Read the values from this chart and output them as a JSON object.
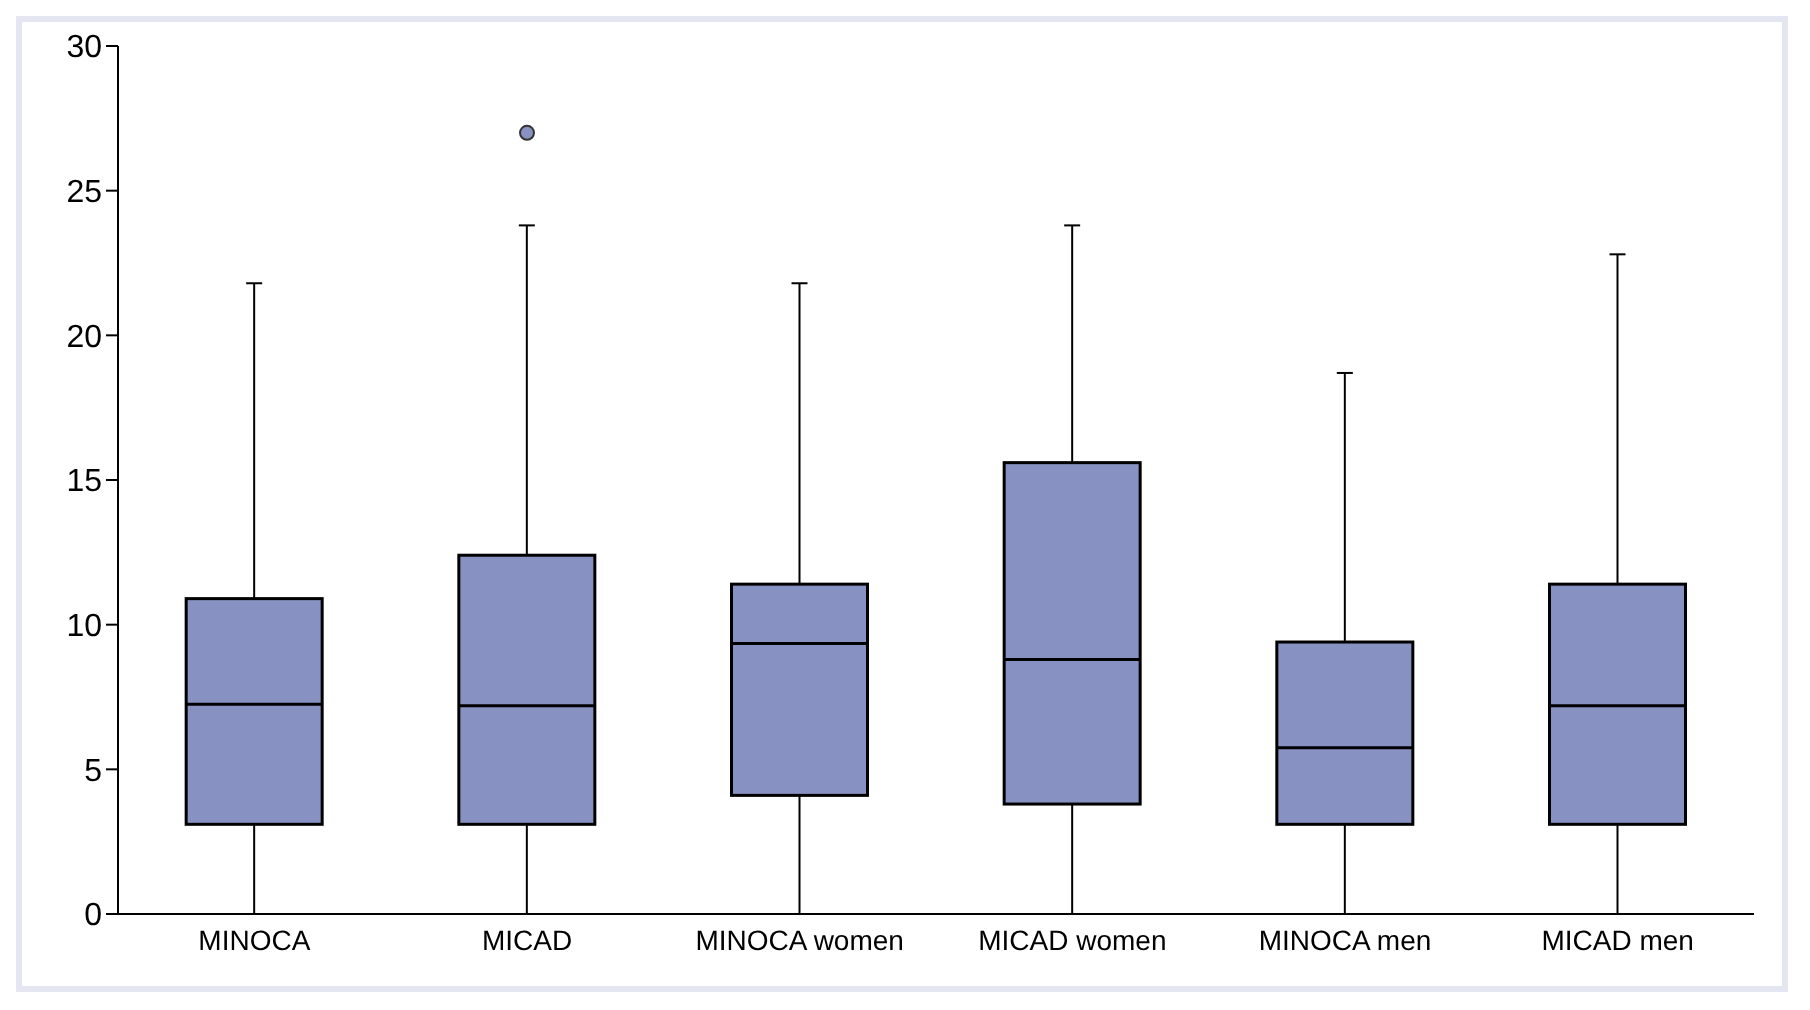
{
  "chart_data": {
    "type": "box",
    "categories": [
      "MINOCA",
      "MICAD",
      "MINOCA women",
      "MICAD women",
      "MINOCA men",
      "MICAD men"
    ],
    "color": "#8892c2",
    "boxes": [
      {
        "low": 0,
        "q1": 3.1,
        "median": 7.25,
        "q3": 10.9,
        "high": 21.8
      },
      {
        "low": 0,
        "q1": 3.1,
        "median": 7.2,
        "q3": 12.4,
        "high": 23.8,
        "outliers": [
          27
        ]
      },
      {
        "low": 0,
        "q1": 4.1,
        "median": 9.35,
        "q3": 11.4,
        "high": 21.8
      },
      {
        "low": 0,
        "q1": 3.8,
        "median": 8.8,
        "q3": 15.6,
        "high": 23.8
      },
      {
        "low": 0,
        "q1": 3.1,
        "median": 5.75,
        "q3": 9.4,
        "high": 18.7
      },
      {
        "low": 0,
        "q1": 3.1,
        "median": 7.2,
        "q3": 11.4,
        "high": 22.8
      }
    ],
    "ylim": [
      0,
      30
    ],
    "yticks": [
      0,
      5,
      10,
      15,
      20,
      25,
      30
    ],
    "grid": false,
    "legend": false
  }
}
